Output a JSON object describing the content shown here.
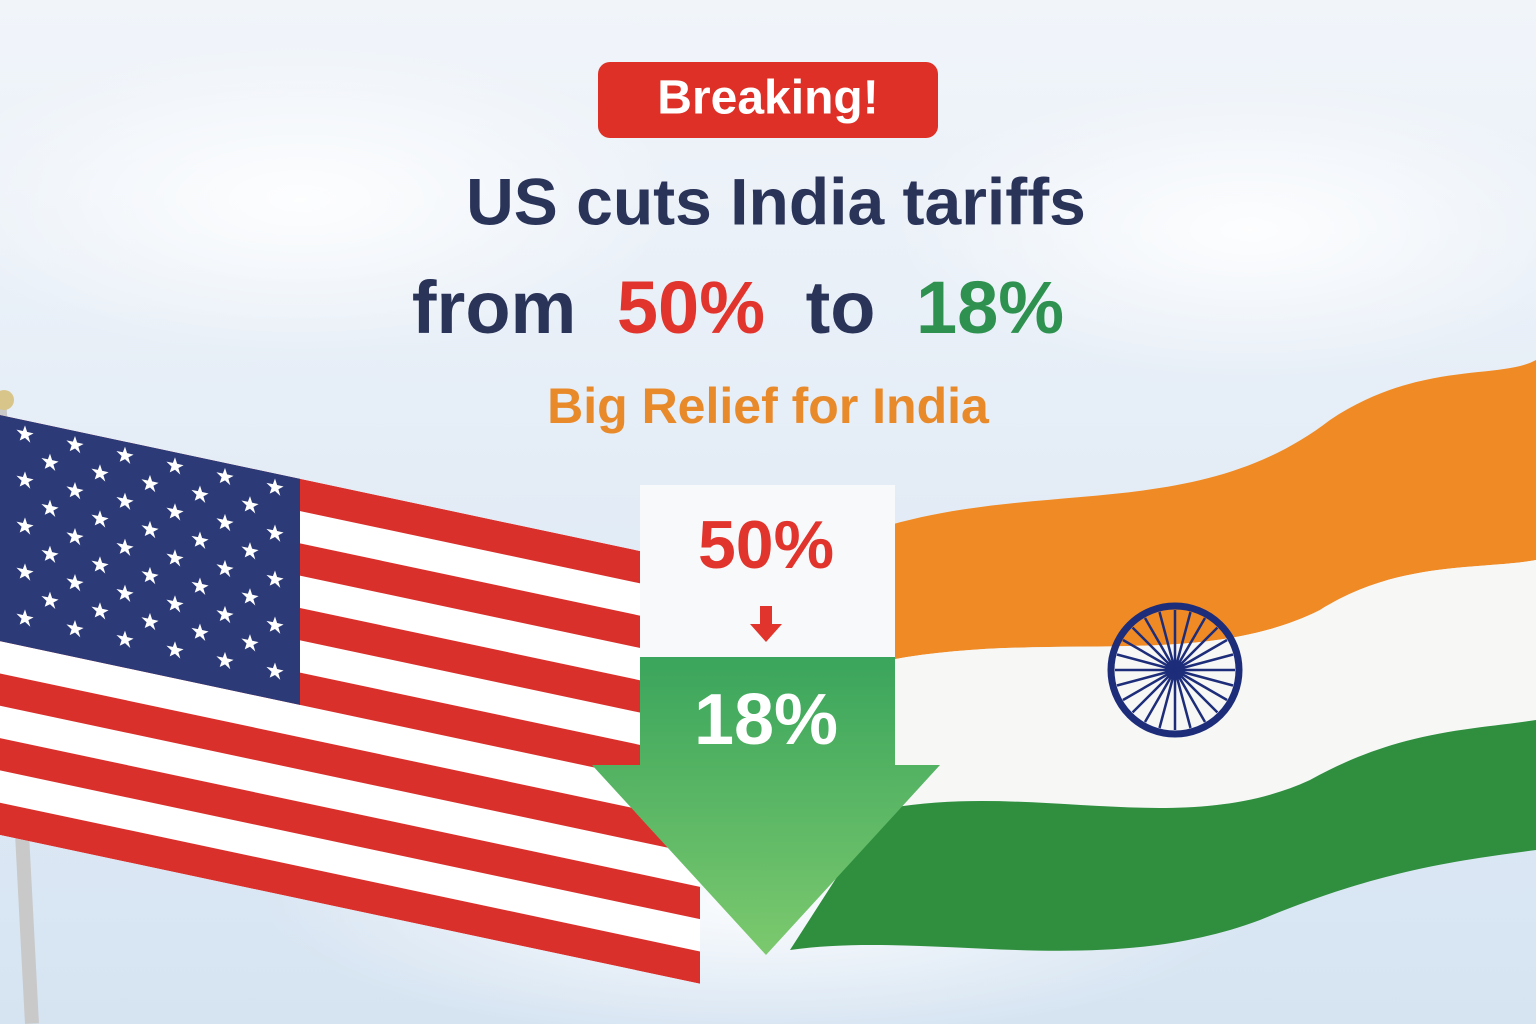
{
  "badge": "Breaking!",
  "headline": {
    "line1": "US cuts India tariffs",
    "line2": [
      "from",
      "50%",
      "to",
      "18%"
    ]
  },
  "subheadline": "Big Relief for India",
  "arrow": {
    "from": "50%",
    "to": "18%"
  }
}
